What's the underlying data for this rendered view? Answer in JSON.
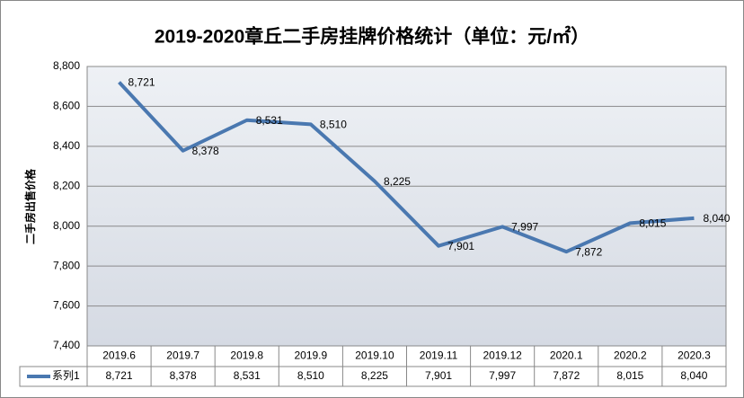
{
  "chart_data": {
    "type": "line",
    "title": "2019-2020章丘二手房挂牌价格统计（单位：元/㎡）",
    "y_label": "二手房出售价格",
    "categories": [
      "2019.6",
      "2019.7",
      "2019.8",
      "2019.9",
      "2019.10",
      "2019.11",
      "2019.12",
      "2020.1",
      "2020.2",
      "2020.3"
    ],
    "series": [
      {
        "name": "系列1",
        "color": "#4a78b0",
        "values": [
          8721,
          8378,
          8531,
          8510,
          8225,
          7901,
          7997,
          7872,
          8015,
          8040
        ],
        "value_labels": [
          "8,721",
          "8,378",
          "8,531",
          "8,510",
          "8,225",
          "7,901",
          "7,997",
          "7,872",
          "8,015",
          "8,040"
        ]
      }
    ],
    "ylim": [
      7400,
      8800
    ],
    "yticks": [
      {
        "value": 7400,
        "label": "7,400"
      },
      {
        "value": 7600,
        "label": "7,600"
      },
      {
        "value": 7800,
        "label": "7,800"
      },
      {
        "value": 8000,
        "label": "8,000"
      },
      {
        "value": 8200,
        "label": "8,200"
      },
      {
        "value": 8400,
        "label": "8,400"
      },
      {
        "value": 8600,
        "label": "8,600"
      },
      {
        "value": 8800,
        "label": "8,800"
      }
    ],
    "grid": true,
    "data_table": true
  }
}
